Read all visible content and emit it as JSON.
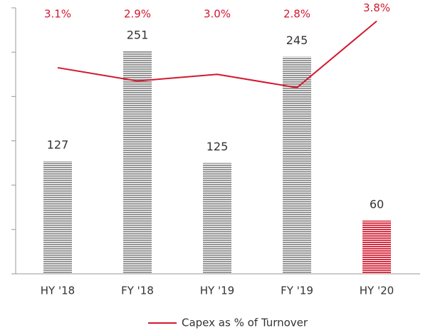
{
  "chart_data": {
    "type": "bar",
    "categories": [
      "HY '18",
      "FY '18",
      "HY '19",
      "FY '19",
      "HY '20"
    ],
    "ylim": [
      0,
      300
    ],
    "yticks": [
      0,
      50,
      100,
      150,
      200,
      250,
      300
    ],
    "y2lim": [
      0,
      4
    ],
    "series": [
      {
        "values": [
          127,
          251,
          125,
          245,
          60
        ],
        "colors": [
          "#8c8c8c",
          "#8c8c8c",
          "#8c8c8c",
          "#8c8c8c",
          "#d2192f"
        ]
      },
      {
        "name": "Capex as % of Turnover",
        "type": "line",
        "axis": "y2",
        "color": "#d2192f",
        "values": [
          3.1,
          2.9,
          3.0,
          2.8,
          3.8
        ],
        "value_labels": [
          "3.1%",
          "2.9%",
          "3.0%",
          "2.8%",
          "3.8%"
        ]
      }
    ]
  }
}
